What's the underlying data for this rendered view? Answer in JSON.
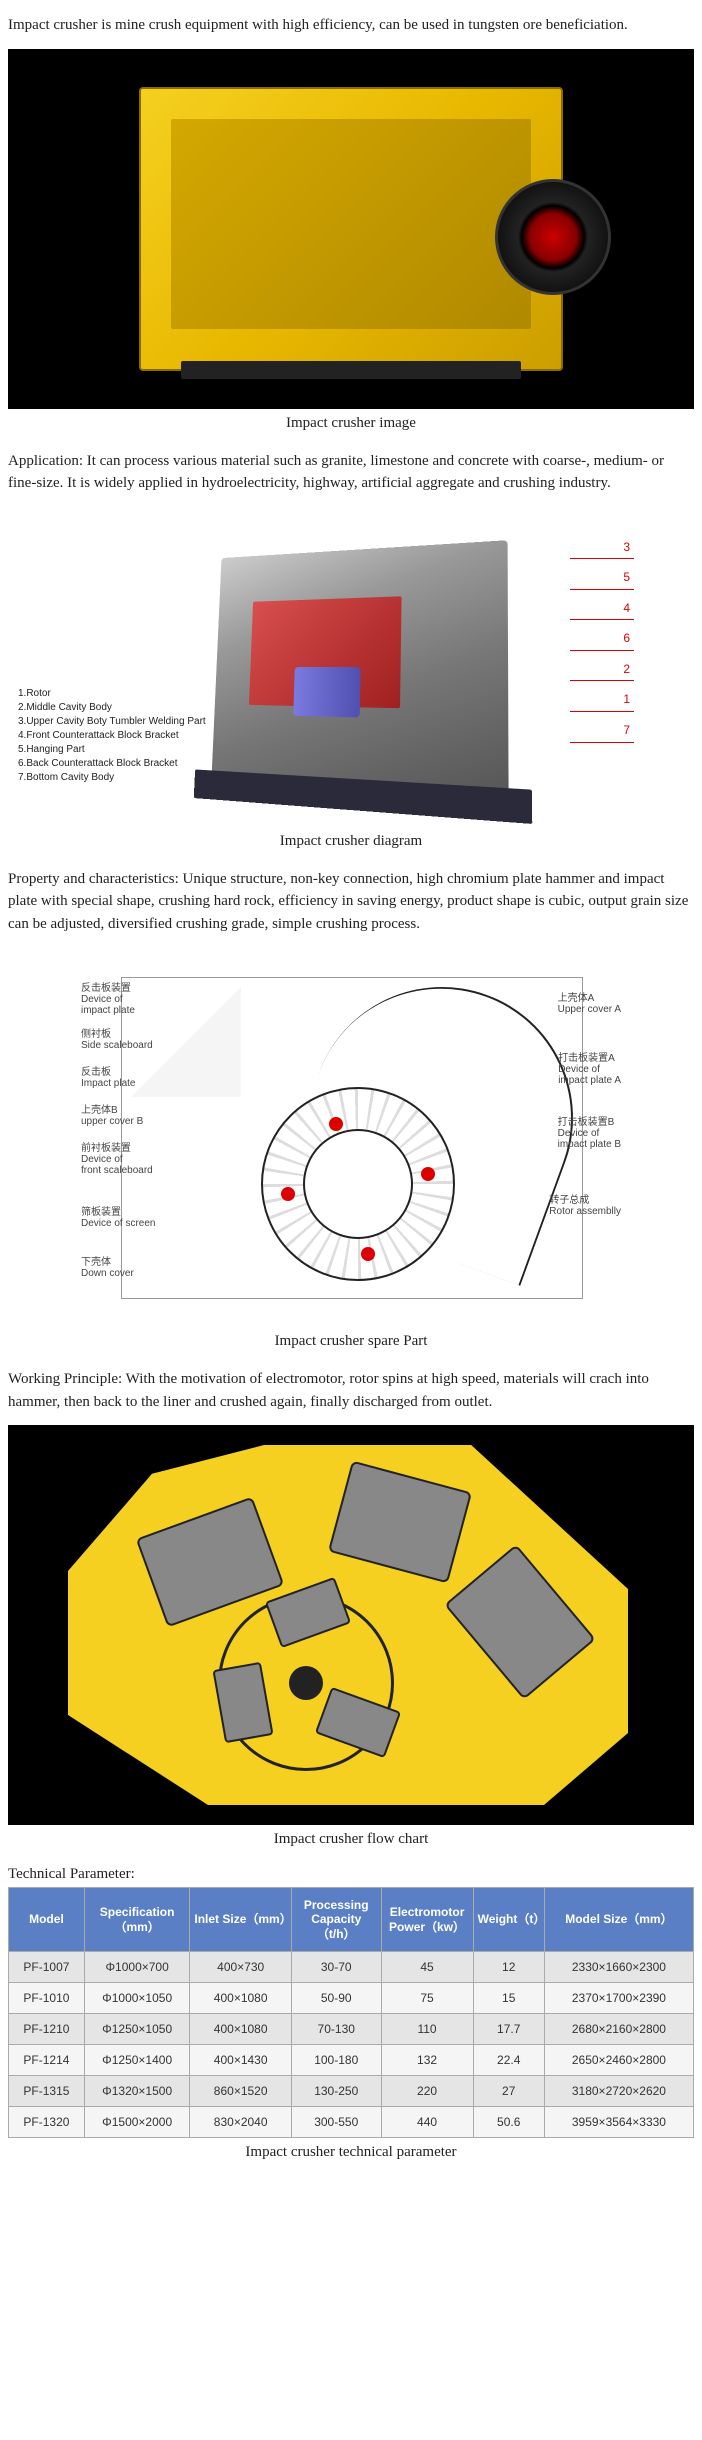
{
  "intro": "Impact crusher is mine crush equipment with high efficiency, can be used in tungsten ore beneficiation.",
  "fig1_caption": "Impact crusher image",
  "application": "Application: It can process various material such as granite, limestone and concrete with coarse-, medium- or fine-size. It is widely applied in hydroelectricity, highway, artificial aggregate and crushing industry.",
  "diagram_parts": {
    "p1": "1.Rotor",
    "p2": "2.Middle Cavity Body",
    "p3": "3.Upper Cavity Boty Tumbler Welding Part",
    "p4": "4.Front Counterattack Block Bracket",
    "p5": "5.Hanging Part",
    "p6": "6.Back Counterattack Block Bracket",
    "p7": "7.Bottom Cavity Body"
  },
  "fig2_caption": "Impact crusher diagram",
  "property": "Property and characteristics: Unique structure, non-key connection, high chromium plate hammer and impact plate with special shape, crushing hard rock, efficiency in saving energy, product shape is cubic, output grain size can be adjusted, diversified crushing grade, simple crushing process.",
  "spare_labels": {
    "l1a": "反击板装置",
    "l1b": "Device of",
    "l1c": "impact plate",
    "l2a": "侧衬板",
    "l2b": "Side scaleboard",
    "l3a": "反击板",
    "l3b": "Impact plate",
    "l4a": "上壳体B",
    "l4b": "upper cover B",
    "l5a": "前衬板装置",
    "l5b": "Device of",
    "l5c": "front scaleboard",
    "l6a": "筛板装置",
    "l6b": "Device of screen",
    "l7a": "下壳体",
    "l7b": "Down cover",
    "r1a": "上壳体A",
    "r1b": "Upper cover A",
    "r2a": "打击板装置A",
    "r2b": "Device of",
    "r2c": "impact plate A",
    "r3a": "打击板装置B",
    "r3b": "Device of",
    "r3c": "impact plate B",
    "r4a": "转子总成",
    "r4b": "Rotor assemblly"
  },
  "fig3_caption": "Impact crusher spare Part",
  "working": "Working Principle: With the motivation of electromotor, rotor spins at high speed, materials will crach into hammer, then back to the liner and crushed again, finally discharged from outlet.",
  "fig4_caption": "Impact crusher flow chart",
  "tech_label": "Technical Parameter:",
  "table": {
    "headers": {
      "model": "Model",
      "spec": "Specification（mm）",
      "inlet": "Inlet Size（mm）",
      "cap": "Processing Capacity（t/h）",
      "power": "Electromotor Power（kw）",
      "weight": "Weight（t）",
      "size": "Model Size（mm）"
    },
    "col_widths": [
      "78",
      "104",
      "106",
      "86",
      "86",
      "70",
      "156"
    ],
    "header_bg": "#5a7fc4",
    "header_color": "#ffffff",
    "border_color": "#aaaaaa",
    "row_odd_bg": "#e5e5e5",
    "row_even_bg": "#f5f5f5",
    "font_size": 12,
    "rows": [
      {
        "model": "PF-1007",
        "spec": "Φ1000×700",
        "inlet": "400×730",
        "cap": "30-70",
        "power": "45",
        "weight": "12",
        "size": "2330×1660×2300"
      },
      {
        "model": "PF-1010",
        "spec": "Φ1000×1050",
        "inlet": "400×1080",
        "cap": "50-90",
        "power": "75",
        "weight": "15",
        "size": "2370×1700×2390"
      },
      {
        "model": "PF-1210",
        "spec": "Φ1250×1050",
        "inlet": "400×1080",
        "cap": "70-130",
        "power": "110",
        "weight": "17.7",
        "size": "2680×2160×2800"
      },
      {
        "model": "PF-1214",
        "spec": "Φ1250×1400",
        "inlet": "400×1430",
        "cap": "100-180",
        "power": "132",
        "weight": "22.4",
        "size": "2650×2460×2800"
      },
      {
        "model": "PF-1315",
        "spec": "Φ1320×1500",
        "inlet": "860×1520",
        "cap": "130-250",
        "power": "220",
        "weight": "27",
        "size": "3180×2720×2620"
      },
      {
        "model": "PF-1320",
        "spec": "Φ1500×2000",
        "inlet": "830×2040",
        "cap": "300-550",
        "power": "440",
        "weight": "50.6",
        "size": "3959×3564×3330"
      }
    ]
  },
  "fig5_caption": "Impact crusher technical parameter"
}
